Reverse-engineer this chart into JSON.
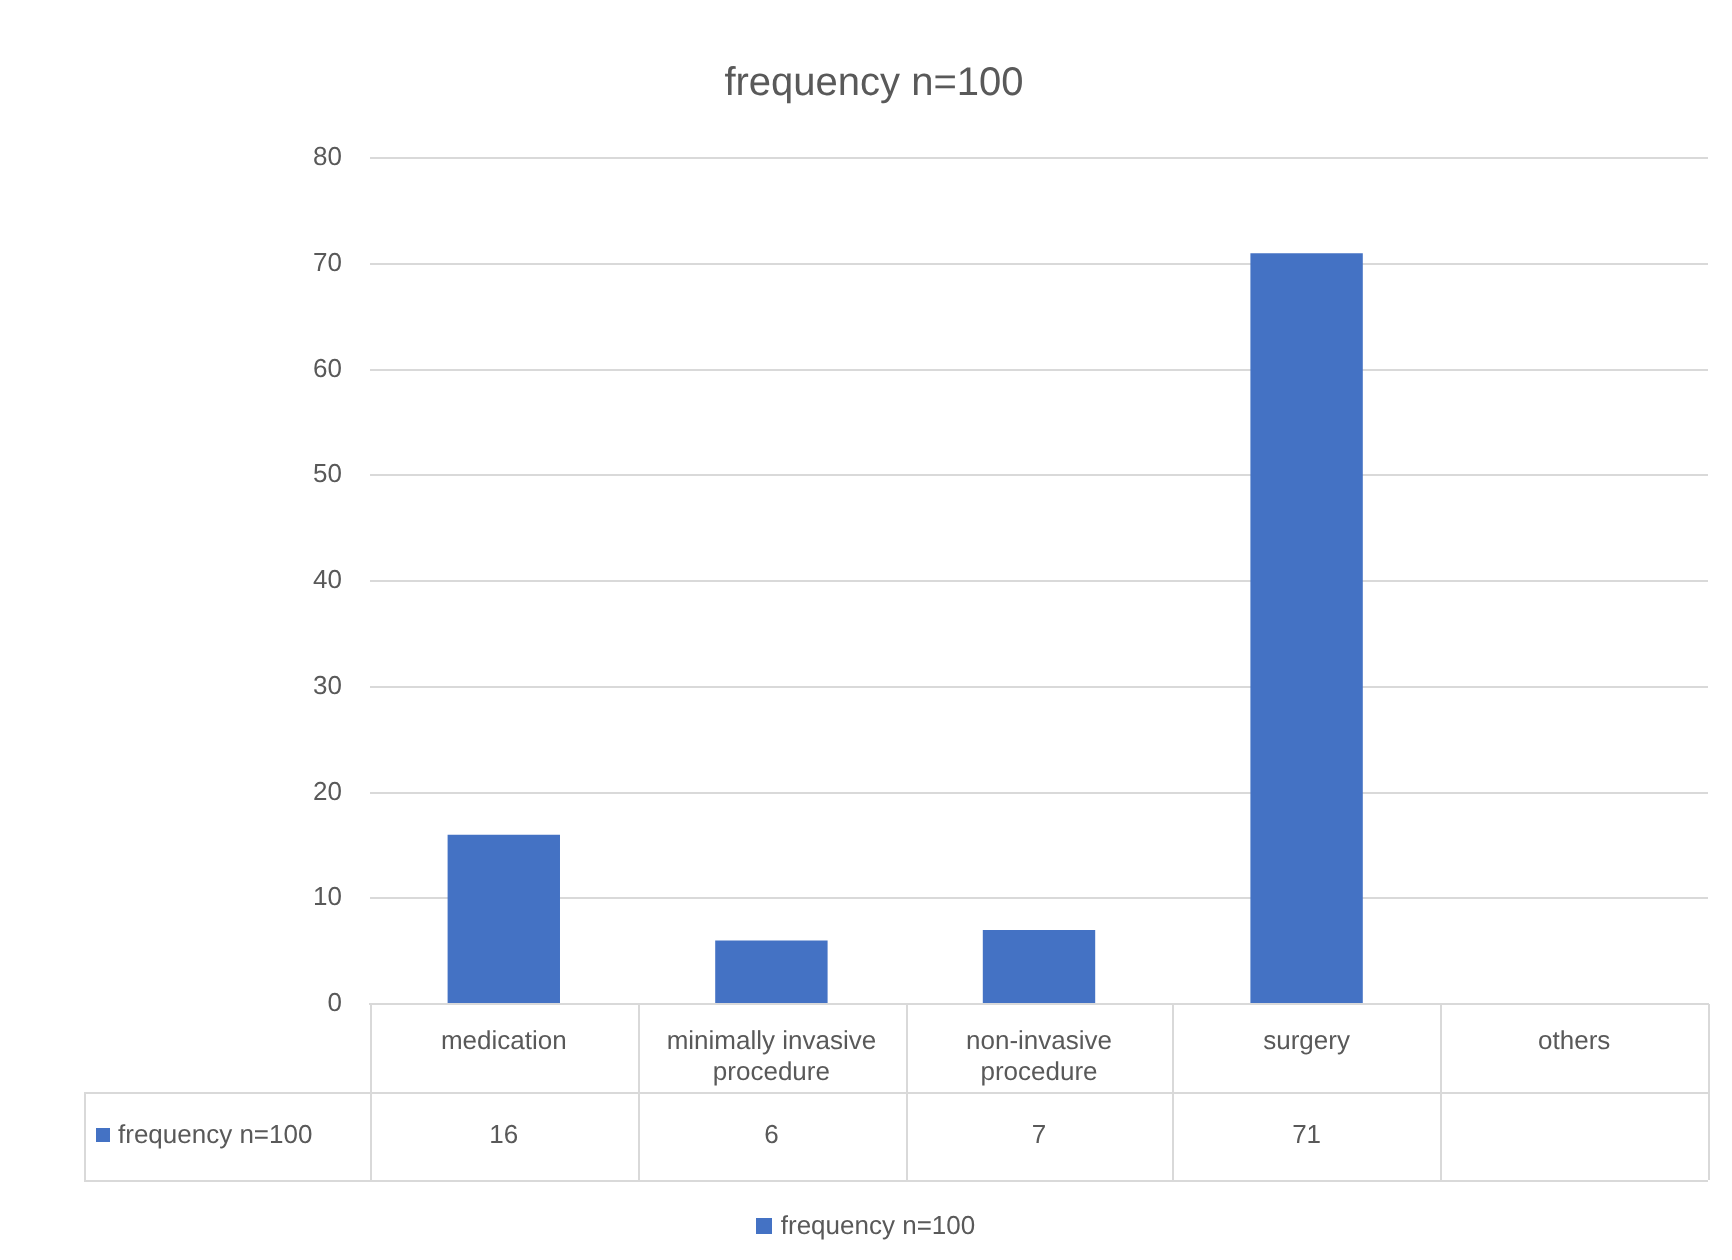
{
  "chart_data": {
    "type": "bar",
    "title": "frequency n=100",
    "categories": [
      "medication",
      "minimally invasive procedure",
      "non-invasive procedure",
      "surgery",
      "others"
    ],
    "series": [
      {
        "name": "frequency n=100",
        "color": "#4472c4",
        "values": [
          16,
          6,
          7,
          71,
          null
        ]
      }
    ],
    "ylim": [
      0,
      80
    ],
    "yticks": [
      0,
      10,
      20,
      30,
      40,
      50,
      60,
      70,
      80
    ],
    "grid": "y",
    "legend": "bottom",
    "data_labels": true
  }
}
